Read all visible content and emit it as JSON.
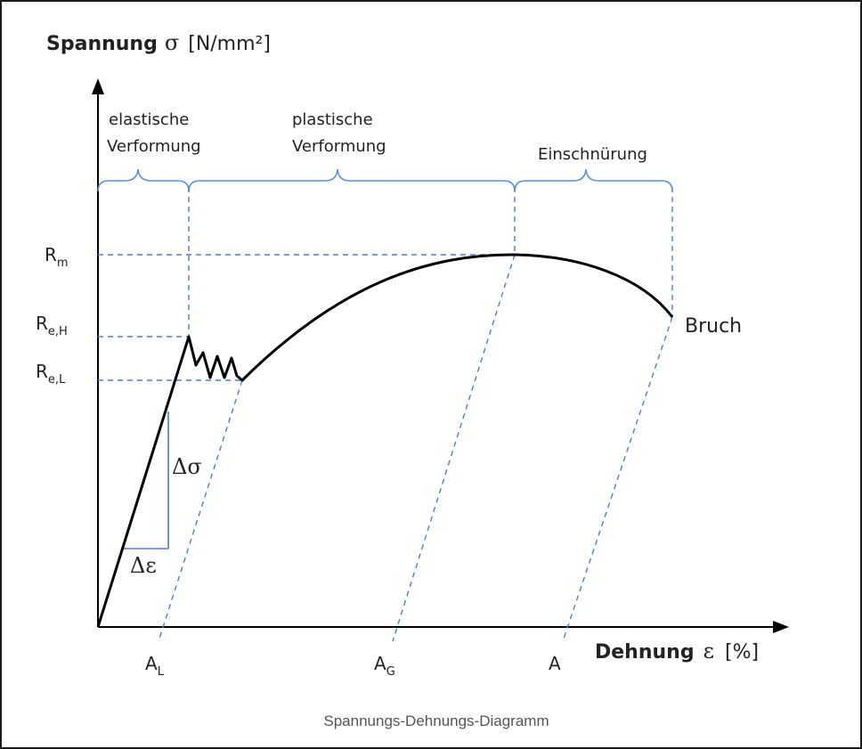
{
  "title": "Spannungs-Dehnungs-Diagramm",
  "y_axis": {
    "word": "Spannung",
    "symbol": "σ",
    "unit": "[N/mm²]"
  },
  "x_axis": {
    "word": "Dehnung",
    "symbol": "ε",
    "unit": "[%]"
  },
  "regions": {
    "elastic_1": "elastische",
    "elastic_2": "Verformung",
    "plastic_1": "plastische",
    "plastic_2": "Verformung",
    "necking": "Einschnürung"
  },
  "levels": {
    "rm_main": "R",
    "rm_sub": "m",
    "reh_main": "R",
    "reh_sub": "e,H",
    "rel_main": "R",
    "rel_sub": "e,L"
  },
  "strains": {
    "al_main": "A",
    "al_sub": "L",
    "ag_main": "A",
    "ag_sub": "G",
    "a": "A"
  },
  "annotations": {
    "bruch": "Bruch",
    "delta_sigma": "Δσ",
    "delta_epsilon": "Δε"
  },
  "colors": {
    "curve": "#000000",
    "guide": "#4a7fc8",
    "bracket": "#5b8fd3"
  }
}
